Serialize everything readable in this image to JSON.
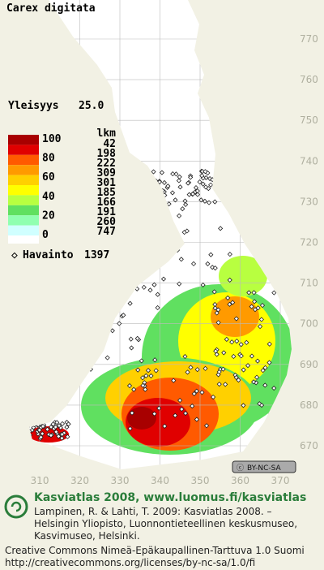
{
  "title": "Carex digitata",
  "frequency": {
    "label": "Yleisyys",
    "value": "25.0"
  },
  "legend": {
    "count_header": "lkm",
    "levels": [
      100,
      80,
      60,
      40,
      20,
      0
    ],
    "bands": [
      {
        "count": 42,
        "color": "#a80000"
      },
      {
        "count": 198,
        "color": "#e00000"
      },
      {
        "count": 222,
        "color": "#ff5a00"
      },
      {
        "count": 309,
        "color": "#ff9a00"
      },
      {
        "count": 301,
        "color": "#ffd000"
      },
      {
        "count": 185,
        "color": "#ffff00"
      },
      {
        "count": 166,
        "color": "#b8ff40"
      },
      {
        "count": 191,
        "color": "#60e060"
      },
      {
        "count": 260,
        "color": "#90ffb0"
      },
      {
        "count": 747,
        "color": "#d0ffff"
      }
    ]
  },
  "observations": {
    "label": "Havainto",
    "count": 1397
  },
  "map": {
    "northing_ticks": [
      770,
      760,
      750,
      740,
      730,
      720,
      710,
      700,
      690,
      680,
      670
    ],
    "easting_ticks": [
      310,
      320,
      330,
      340,
      350,
      360,
      370
    ]
  },
  "license_badge": "BY-NC-SA",
  "footer": {
    "heading": "Kasviatlas 2008, www.luomus.fi/kasviatlas",
    "citation": [
      "Lampinen, R. & Lahti, T. 2009: Kasviatlas 2008. –",
      "Helsingin Yliopisto, Luonnontieteellinen keskusmuseo,",
      "Kasvimuseo, Helsinki."
    ],
    "license": [
      "Creative Commons Nimeä-Epäkaupallinen-Tarttuva 1.0 Suomi",
      "http://creativecommons.org/licenses/by-nc-sa/1.0/fi"
    ]
  }
}
